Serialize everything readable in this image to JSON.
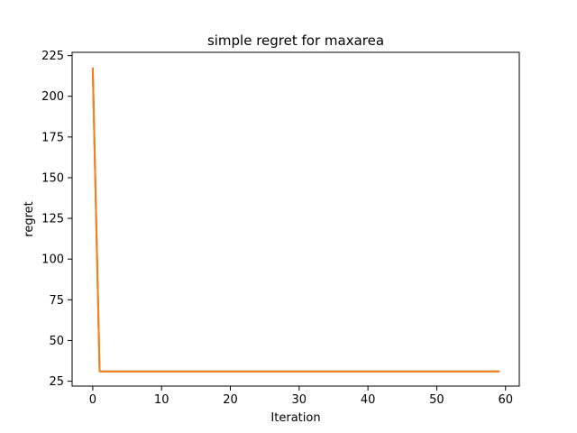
{
  "chart_data": {
    "type": "line",
    "title": "simple regret for maxarea",
    "xlabel": "Iteration",
    "ylabel": "regret",
    "xlim": [
      -3,
      62
    ],
    "ylim": [
      22,
      227
    ],
    "xticks": [
      0,
      10,
      20,
      30,
      40,
      50,
      60
    ],
    "yticks": [
      25,
      50,
      75,
      100,
      125,
      150,
      175,
      200,
      225
    ],
    "grid": false,
    "series": [
      {
        "color": "#1f77b4",
        "x": [
          0,
          1,
          2,
          3,
          4,
          5,
          6,
          7,
          8,
          9,
          10,
          11,
          12,
          13,
          14,
          15,
          16,
          17,
          18,
          19,
          20,
          21,
          22,
          23,
          24,
          25,
          26,
          27,
          28,
          29,
          30,
          31,
          32,
          33,
          34,
          35,
          36,
          37,
          38,
          39,
          40,
          41,
          42,
          43,
          44,
          45,
          46,
          47,
          48,
          49,
          50,
          51,
          52,
          53,
          54,
          55,
          56,
          57,
          58,
          59
        ],
        "values": [
          217,
          31,
          31,
          31,
          31,
          31,
          31,
          31,
          31,
          31,
          31,
          31,
          31,
          31,
          31,
          31,
          31,
          31,
          31,
          31,
          31,
          31,
          31,
          31,
          31,
          31,
          31,
          31,
          31,
          31,
          31,
          31,
          31,
          31,
          31,
          31,
          31,
          31,
          31,
          31,
          31,
          31,
          31,
          31,
          31,
          31,
          31,
          31,
          31,
          31,
          31,
          31,
          31,
          31,
          31,
          31,
          31,
          31,
          31,
          31
        ]
      },
      {
        "color": "#ff7f0e",
        "x": [
          0,
          1,
          2,
          3,
          4,
          5,
          6,
          7,
          8,
          9,
          10,
          11,
          12,
          13,
          14,
          15,
          16,
          17,
          18,
          19,
          20,
          21,
          22,
          23,
          24,
          25,
          26,
          27,
          28,
          29,
          30,
          31,
          32,
          33,
          34,
          35,
          36,
          37,
          38,
          39,
          40,
          41,
          42,
          43,
          44,
          45,
          46,
          47,
          48,
          49,
          50,
          51,
          52,
          53,
          54,
          55,
          56,
          57,
          58,
          59
        ],
        "values": [
          217,
          31,
          31,
          31,
          31,
          31,
          31,
          31,
          31,
          31,
          31,
          31,
          31,
          31,
          31,
          31,
          31,
          31,
          31,
          31,
          31,
          31,
          31,
          31,
          31,
          31,
          31,
          31,
          31,
          31,
          31,
          31,
          31,
          31,
          31,
          31,
          31,
          31,
          31,
          31,
          31,
          31,
          31,
          31,
          31,
          31,
          31,
          31,
          31,
          31,
          31,
          31,
          31,
          31,
          31,
          31,
          31,
          31,
          31,
          31
        ]
      }
    ]
  }
}
